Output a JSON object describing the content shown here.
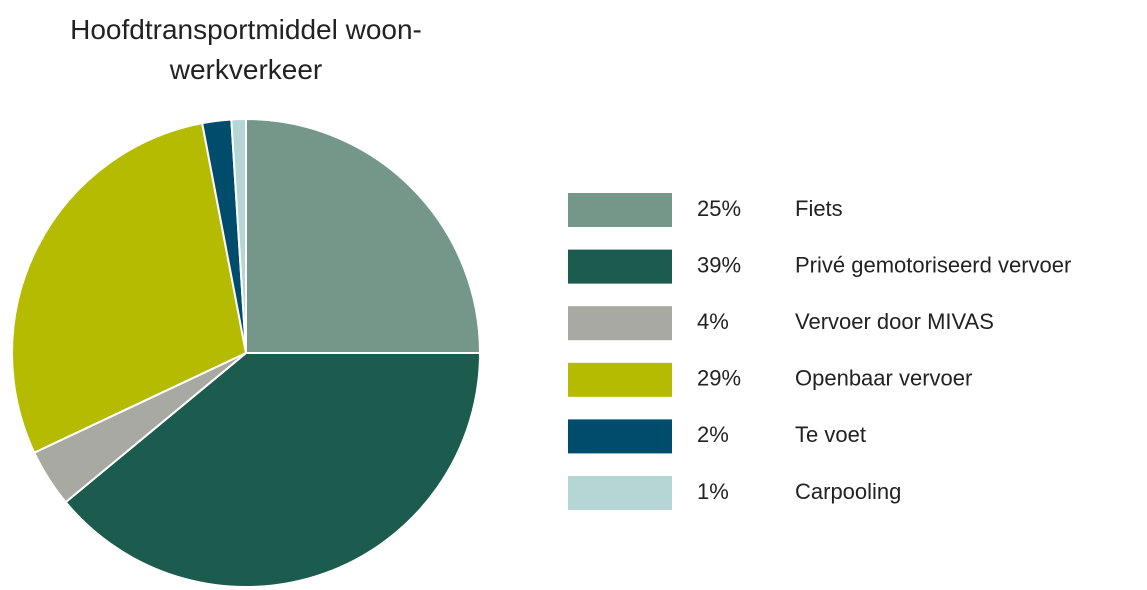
{
  "chart_data": {
    "type": "pie",
    "title": "Hoofdtransportmiddel woon-werkverkeer",
    "categories": [
      "Fiets",
      "Privé gemotoriseerd vervoer",
      "Vervoer door MIVAS",
      "Openbaar vervoer",
      "Te voet",
      "Carpooling"
    ],
    "values": [
      25,
      39,
      4,
      29,
      2,
      1
    ],
    "value_labels": [
      "25%",
      "39%",
      "4%",
      "29%",
      "2%",
      "1%"
    ],
    "colors": [
      "#74978a",
      "#1b5c4e",
      "#a9a9a3",
      "#b5bb00",
      "#004c6d",
      "#b5d6d4"
    ]
  }
}
